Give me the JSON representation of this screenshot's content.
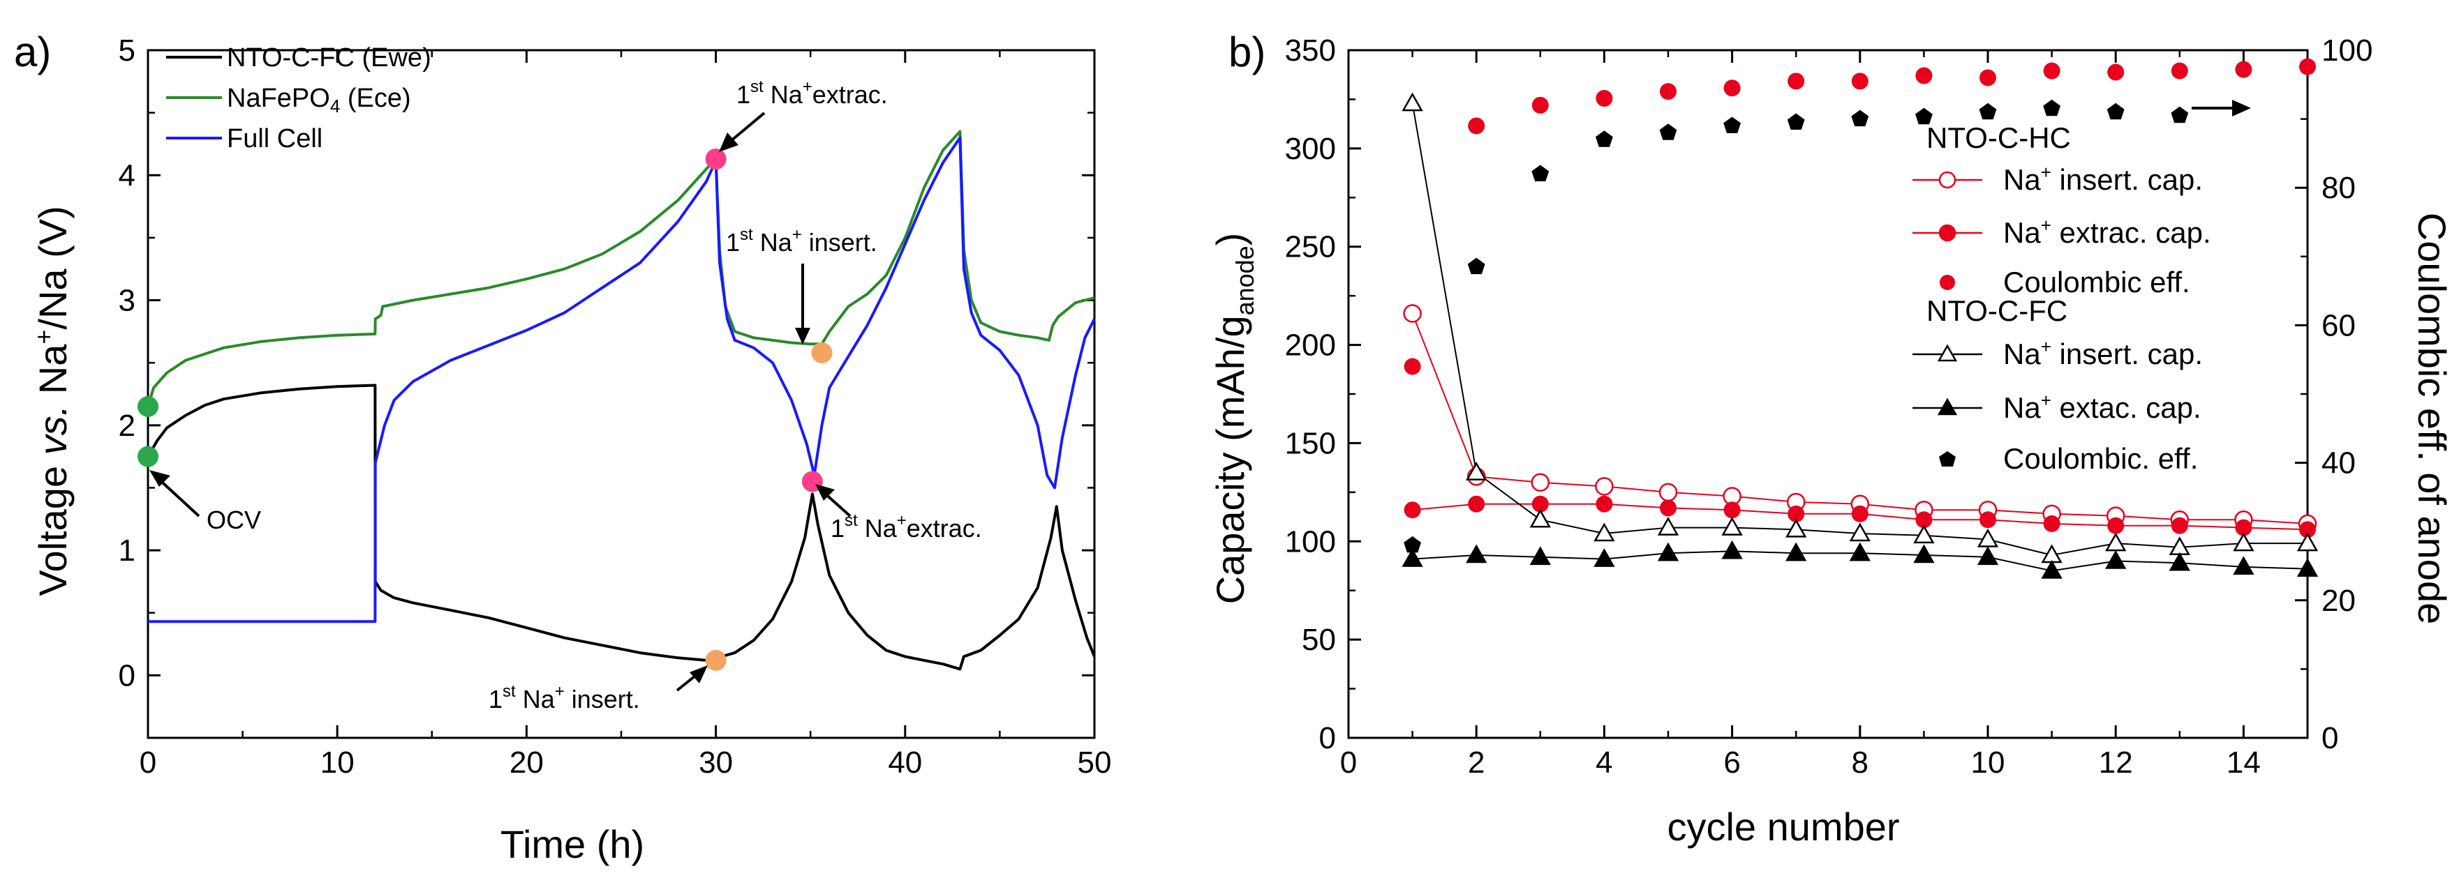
{
  "chart_data": [
    {
      "type": "line",
      "panel_label": "a)",
      "xlabel": "Time (h)",
      "ylabel": {
        "pre": "Voltage ",
        "italic": "vs.",
        "mid": " Na",
        "sup": "+",
        "post": "/Na (V)"
      },
      "xlim": [
        0,
        50
      ],
      "ylim": [
        -0.5,
        5
      ],
      "xticks": [
        "0",
        "10",
        "20",
        "30",
        "40",
        "50"
      ],
      "yticks": [
        "0",
        "1",
        "2",
        "3",
        "4",
        "5"
      ],
      "legend_position": "top-left",
      "series": [
        {
          "name": "NTO-C-FC (Ewe)",
          "legend_label": "NTO-C-FC (Ewe)",
          "color": "#000000",
          "points": [
            [
              0,
              1.75
            ],
            [
              0.5,
              1.88
            ],
            [
              1,
              1.98
            ],
            [
              2,
              2.08
            ],
            [
              3,
              2.16
            ],
            [
              4,
              2.21
            ],
            [
              6,
              2.26
            ],
            [
              8,
              2.29
            ],
            [
              10,
              2.31
            ],
            [
              12,
              2.32
            ],
            [
              12.01,
              0.75
            ],
            [
              12.3,
              0.68
            ],
            [
              13,
              0.62
            ],
            [
              14,
              0.58
            ],
            [
              16,
              0.52
            ],
            [
              18,
              0.46
            ],
            [
              20,
              0.38
            ],
            [
              22,
              0.3
            ],
            [
              24,
              0.24
            ],
            [
              26,
              0.18
            ],
            [
              28,
              0.14
            ],
            [
              29.5,
              0.12
            ],
            [
              30,
              0.12
            ],
            [
              30.3,
              0.15
            ],
            [
              31,
              0.18
            ],
            [
              32,
              0.28
            ],
            [
              33,
              0.45
            ],
            [
              34,
              0.75
            ],
            [
              34.7,
              1.1
            ],
            [
              35.1,
              1.45
            ],
            [
              35.4,
              1.2
            ],
            [
              36,
              0.8
            ],
            [
              37,
              0.5
            ],
            [
              38,
              0.32
            ],
            [
              39,
              0.2
            ],
            [
              40,
              0.15
            ],
            [
              41,
              0.12
            ],
            [
              42,
              0.09
            ],
            [
              42.9,
              0.05
            ],
            [
              43.1,
              0.15
            ],
            [
              44,
              0.2
            ],
            [
              45,
              0.32
            ],
            [
              46,
              0.45
            ],
            [
              47,
              0.7
            ],
            [
              47.7,
              1.1
            ],
            [
              48,
              1.35
            ],
            [
              48.3,
              1.0
            ],
            [
              49,
              0.6
            ],
            [
              49.6,
              0.3
            ],
            [
              50,
              0.15
            ]
          ]
        },
        {
          "name": "NaFePO4 (Ece)",
          "legend_label": "NaFePO",
          "legend_sub": "4",
          "legend_post": " (Ece)",
          "color": "#2a8a2a",
          "points": [
            [
              0,
              2.15
            ],
            [
              0.3,
              2.3
            ],
            [
              1,
              2.42
            ],
            [
              2,
              2.52
            ],
            [
              4,
              2.62
            ],
            [
              6,
              2.67
            ],
            [
              8,
              2.7
            ],
            [
              10,
              2.72
            ],
            [
              12,
              2.73
            ],
            [
              12.01,
              2.85
            ],
            [
              12.3,
              2.88
            ],
            [
              12.4,
              2.95
            ],
            [
              14,
              3.0
            ],
            [
              16,
              3.05
            ],
            [
              18,
              3.1
            ],
            [
              20,
              3.17
            ],
            [
              22,
              3.25
            ],
            [
              24,
              3.37
            ],
            [
              26,
              3.55
            ],
            [
              28,
              3.8
            ],
            [
              29.5,
              4.05
            ],
            [
              30,
              4.13
            ],
            [
              30.2,
              3.4
            ],
            [
              30.5,
              2.95
            ],
            [
              31,
              2.75
            ],
            [
              32,
              2.7
            ],
            [
              33,
              2.68
            ],
            [
              34,
              2.66
            ],
            [
              35,
              2.65
            ],
            [
              35.6,
              2.65
            ],
            [
              36,
              2.75
            ],
            [
              37,
              2.95
            ],
            [
              38,
              3.05
            ],
            [
              39,
              3.2
            ],
            [
              40,
              3.5
            ],
            [
              41,
              3.9
            ],
            [
              42,
              4.2
            ],
            [
              42.9,
              4.35
            ],
            [
              43.1,
              3.4
            ],
            [
              43.5,
              3.0
            ],
            [
              44,
              2.82
            ],
            [
              45,
              2.75
            ],
            [
              46,
              2.72
            ],
            [
              47,
              2.7
            ],
            [
              47.6,
              2.68
            ],
            [
              47.8,
              2.8
            ],
            [
              48.1,
              2.87
            ],
            [
              49,
              2.98
            ],
            [
              50,
              3.02
            ]
          ]
        },
        {
          "name": "Full Cell",
          "legend_label": "Full Cell",
          "color": "#1a1aff",
          "points": [
            [
              0,
              0.43
            ],
            [
              12,
              0.43
            ],
            [
              12.01,
              1.7
            ],
            [
              12.5,
              2.0
            ],
            [
              13,
              2.2
            ],
            [
              14,
              2.35
            ],
            [
              16,
              2.52
            ],
            [
              18,
              2.64
            ],
            [
              20,
              2.76
            ],
            [
              22,
              2.9
            ],
            [
              24,
              3.1
            ],
            [
              26,
              3.3
            ],
            [
              28,
              3.63
            ],
            [
              29.5,
              3.95
            ],
            [
              30,
              4.12
            ],
            [
              30.2,
              3.3
            ],
            [
              30.6,
              2.85
            ],
            [
              31,
              2.68
            ],
            [
              32,
              2.62
            ],
            [
              33,
              2.5
            ],
            [
              34,
              2.2
            ],
            [
              34.8,
              1.85
            ],
            [
              35.2,
              1.6
            ],
            [
              35.6,
              2.0
            ],
            [
              36,
              2.3
            ],
            [
              37,
              2.55
            ],
            [
              38,
              2.8
            ],
            [
              39,
              3.1
            ],
            [
              40,
              3.45
            ],
            [
              41,
              3.8
            ],
            [
              42,
              4.1
            ],
            [
              42.9,
              4.3
            ],
            [
              43.1,
              3.25
            ],
            [
              43.5,
              2.9
            ],
            [
              44,
              2.72
            ],
            [
              45,
              2.6
            ],
            [
              46,
              2.4
            ],
            [
              47,
              2.0
            ],
            [
              47.5,
              1.6
            ],
            [
              47.9,
              1.5
            ],
            [
              48.3,
              1.9
            ],
            [
              49,
              2.4
            ],
            [
              49.5,
              2.7
            ],
            [
              50,
              2.85
            ]
          ]
        }
      ],
      "markers": [
        {
          "name": "ocv-fc-marker",
          "x": 0,
          "y": 1.75,
          "color": "#2aa84a"
        },
        {
          "name": "ocv-nfp-marker",
          "x": 0,
          "y": 2.15,
          "color": "#2aa84a"
        },
        {
          "name": "extrac-full-cell-marker",
          "x": 30,
          "y": 4.13,
          "color": "#ff3d8a"
        },
        {
          "name": "insert-anode-marker",
          "x": 30,
          "y": 0.12,
          "color": "#f4a460"
        },
        {
          "name": "insert-nfp-marker",
          "x": 35.6,
          "y": 2.58,
          "color": "#f4a460"
        },
        {
          "name": "extrac-anode-marker",
          "x": 35.1,
          "y": 1.55,
          "color": "#ff3d8a"
        }
      ],
      "annotations": [
        {
          "name": "ocv-label",
          "text": "OCV"
        },
        {
          "name": "extrac-label-top",
          "pre": "1",
          "sup": "st",
          "mid": " Na",
          "sup2": "+",
          "post": "extrac."
        },
        {
          "name": "insert-label-top",
          "pre": "1",
          "sup": "st",
          "mid": " Na",
          "sup2": "+",
          "post": " insert."
        },
        {
          "name": "extrac-label-mid",
          "pre": "1",
          "sup": "st",
          "mid": " Na",
          "sup2": "+",
          "post": "extrac."
        },
        {
          "name": "insert-label-bottom",
          "pre": "1",
          "sup": "st",
          "mid": " Na",
          "sup2": "+",
          "post": " insert."
        }
      ]
    },
    {
      "type": "scatter",
      "panel_label": "b)",
      "xlabel": "cycle number",
      "ylabel_left": {
        "pre": "Capacity (mAh/g",
        "sub": "anode",
        "post": ")"
      },
      "ylabel_right": "Coulombic eff. of anode",
      "xlim": [
        0,
        15
      ],
      "ylim_left": [
        0,
        350
      ],
      "ylim_right": [
        0,
        100
      ],
      "xticks": [
        "0",
        "2",
        "4",
        "6",
        "8",
        "10",
        "12",
        "14"
      ],
      "yticks_left": [
        "0",
        "50",
        "100",
        "150",
        "200",
        "250",
        "300",
        "350"
      ],
      "yticks_right": [
        "0",
        "20",
        "40",
        "60",
        "80",
        "100"
      ],
      "x": [
        1,
        2,
        3,
        4,
        5,
        6,
        7,
        8,
        9,
        10,
        11,
        12,
        13,
        14,
        15
      ],
      "legend": {
        "group1_title": "NTO-C-HC",
        "group2_title": "NTO-C-FC",
        "entries": [
          {
            "pre": "Na",
            "sup": "+",
            "post": " insert. cap."
          },
          {
            "pre": "Na",
            "sup": "+",
            "post": " extrac. cap."
          },
          {
            "pre": "Coulombic eff.",
            "sup": "",
            "post": ""
          },
          {
            "pre": "Na",
            "sup": "+",
            "post": " insert. cap."
          },
          {
            "pre": "Na",
            "sup": "+",
            "post": " extac. cap."
          },
          {
            "pre": "Coulombic. eff.",
            "sup": "",
            "post": ""
          }
        ]
      },
      "series": [
        {
          "name": "NTO-C-HC Na+ insert. cap.",
          "axis": "left",
          "marker": "circle-open",
          "color": "#e8001c",
          "line": true,
          "values": [
            216,
            133,
            130,
            128,
            125,
            123,
            120,
            119,
            116,
            116,
            114,
            113,
            111,
            111,
            109
          ]
        },
        {
          "name": "NTO-C-HC Na+ extrac. cap.",
          "axis": "left",
          "marker": "circle-filled",
          "color": "#e8001c",
          "line": true,
          "values": [
            116,
            119,
            119,
            119,
            117,
            116,
            114,
            114,
            111,
            111,
            109,
            108,
            108,
            107,
            106
          ]
        },
        {
          "name": "NTO-C-HC Coulombic eff.",
          "axis": "right",
          "marker": "circle-filled",
          "color": "#e8001c",
          "line": false,
          "values": [
            54,
            89,
            92,
            93,
            94,
            94.5,
            95.5,
            95.5,
            96.3,
            96,
            97,
            96.8,
            97,
            97.2,
            97.6
          ]
        },
        {
          "name": "NTO-C-FC Na+ insert. cap.",
          "axis": "left",
          "marker": "triangle-open",
          "color": "#000000",
          "line": true,
          "values": [
            323,
            135,
            111,
            104,
            107,
            107,
            106,
            104,
            103,
            101,
            93,
            99,
            97,
            99,
            99
          ]
        },
        {
          "name": "NTO-C-FC Na+ extac. cap.",
          "axis": "left",
          "marker": "triangle-filled",
          "color": "#000000",
          "line": true,
          "values": [
            91,
            93,
            92,
            91,
            94,
            95,
            94,
            94,
            93,
            92,
            85,
            90,
            89,
            87,
            86
          ]
        },
        {
          "name": "NTO-C-FC Coulombic. eff.",
          "axis": "right",
          "marker": "pentagon-filled",
          "color": "#000000",
          "line": false,
          "values": [
            28,
            68.5,
            82,
            87,
            88,
            89,
            89.5,
            90,
            90.3,
            91,
            91.5,
            91,
            90.5,
            null,
            null
          ]
        }
      ],
      "annotation": "arrow pointing to right axis"
    }
  ]
}
